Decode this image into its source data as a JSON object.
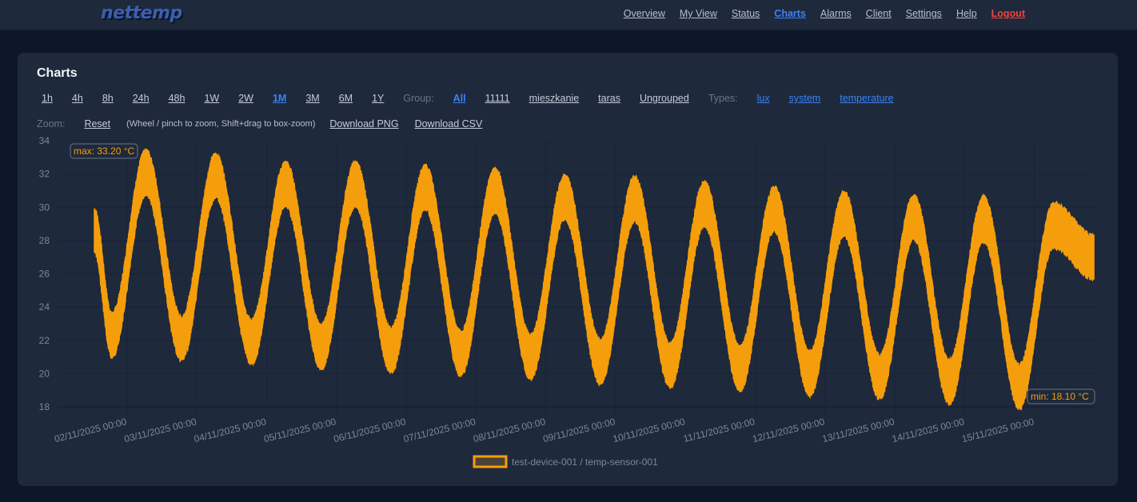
{
  "app": {
    "logo": "nettemp"
  },
  "nav": [
    {
      "label": "Overview"
    },
    {
      "label": "My View"
    },
    {
      "label": "Status"
    },
    {
      "label": "Charts",
      "active": true
    },
    {
      "label": "Alarms"
    },
    {
      "label": "Client"
    },
    {
      "label": "Settings"
    },
    {
      "label": "Help"
    },
    {
      "label": "Logout",
      "danger": true
    }
  ],
  "card": {
    "title": "Charts"
  },
  "ranges": [
    "1h",
    "4h",
    "8h",
    "24h",
    "48h",
    "1W",
    "2W",
    "1M",
    "3M",
    "6M",
    "1Y"
  ],
  "selected_range": "1M",
  "group_label": "Group:",
  "groups": [
    "All",
    "11111",
    "mieszkanie",
    "taras",
    "Ungrouped"
  ],
  "selected_group": "All",
  "types_label": "Types:",
  "types": [
    "lux",
    "system",
    "temperature"
  ],
  "zoom": {
    "label": "Zoom:",
    "reset": "Reset",
    "hint": "(Wheel / pinch to zoom, Shift+drag to box-zoom)",
    "download_png": "Download PNG",
    "download_csv": "Download CSV"
  },
  "colors": {
    "series": "#f59e0b",
    "accent": "#3b82f6",
    "danger": "#ef4444"
  },
  "chart_data": {
    "type": "line",
    "ylim": [
      18,
      34
    ],
    "yticks": [
      18,
      20,
      22,
      24,
      26,
      28,
      30,
      32,
      34
    ],
    "xticks": [
      "02/11/2025 00:00",
      "03/11/2025 00:00",
      "04/11/2025 00:00",
      "05/11/2025 00:00",
      "06/11/2025 00:00",
      "07/11/2025 00:00",
      "08/11/2025 00:00",
      "09/11/2025 00:00",
      "10/11/2025 00:00",
      "11/11/2025 00:00",
      "12/11/2025 00:00",
      "13/11/2025 00:00",
      "14/11/2025 00:00",
      "15/11/2025 00:00"
    ],
    "grid": true,
    "legend_position": "bottom",
    "series": [
      {
        "name": "test-device-001 / temp-sensor-001",
        "start_value": 28.6,
        "end_value": 27.0,
        "daily_peaks": [
          33.2,
          33.0,
          32.5,
          32.5,
          32.3,
          32.1,
          31.7,
          31.6,
          31.3,
          31.0,
          30.7,
          30.5,
          30.4,
          30.0
        ],
        "daily_troughs": [
          21.2,
          21.0,
          20.8,
          20.5,
          20.3,
          20.1,
          19.9,
          19.6,
          19.4,
          19.2,
          18.9,
          18.7,
          18.4,
          18.1
        ]
      }
    ],
    "annotations": {
      "max": "max: 33.20 °C",
      "min": "min: 18.10 °C"
    }
  }
}
